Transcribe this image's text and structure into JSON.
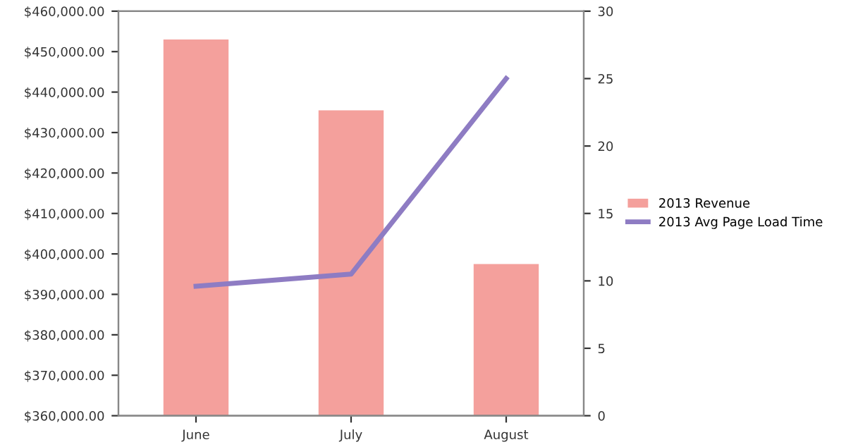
{
  "chart_data": {
    "type": "bar",
    "categories": [
      "June",
      "July",
      "August"
    ],
    "series": [
      {
        "name": "2013 Revenue",
        "color": "#f4a09c",
        "values": [
          453000,
          435500,
          397500
        ]
      },
      {
        "name": "2013 Avg Page Load Time",
        "type": "line",
        "axis": "y2",
        "color": "#8e7cc3",
        "values": [
          9.6,
          10.5,
          25
        ]
      }
    ],
    "ylim": [
      360000,
      460000
    ],
    "yticks": [
      {
        "value": 360000,
        "label": "$360,000.00"
      },
      {
        "value": 370000,
        "label": "$370,000.00"
      },
      {
        "value": 380000,
        "label": "$380,000.00"
      },
      {
        "value": 390000,
        "label": "$390,000.00"
      },
      {
        "value": 400000,
        "label": "$400,000.00"
      },
      {
        "value": 410000,
        "label": "$410,000.00"
      },
      {
        "value": 420000,
        "label": "$420,000.00"
      },
      {
        "value": 430000,
        "label": "$430,000.00"
      },
      {
        "value": 440000,
        "label": "$440,000.00"
      },
      {
        "value": 450000,
        "label": "$450,000.00"
      },
      {
        "value": 460000,
        "label": "$460,000.00"
      }
    ],
    "y2lim": [
      0,
      30
    ],
    "y2ticks": [
      0,
      5,
      10,
      15,
      20,
      25,
      30
    ],
    "grid": false,
    "legend": "right",
    "marker": "none",
    "line_style": "solid"
  }
}
